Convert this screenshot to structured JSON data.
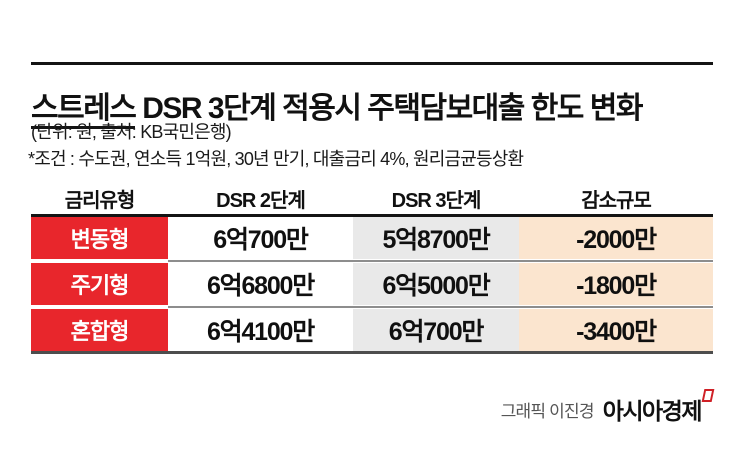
{
  "chart_data": {
    "type": "table",
    "title": "스트레스 DSR 3단계 적용시 주택담보대출 한도 변화",
    "unit_source": "(단위: 원, 출처: KB국민은행)",
    "condition": "*조건 : 수도권, 연소득 1억원, 30년 만기, 대출금리 4%, 원리금균등상환",
    "columns": [
      "금리유형",
      "DSR 2단계",
      "DSR 3단계",
      "감소규모"
    ],
    "rows": [
      [
        "변동형",
        "6억700만",
        "5억8700만",
        "-2000만"
      ],
      [
        "주기형",
        "6억6800만",
        "6억5000만",
        "-1800만"
      ],
      [
        "혼합형",
        "6억4100만",
        "6억700만",
        "-3400만"
      ]
    ]
  },
  "header": {
    "title_emphasis": "스트레스",
    "title_rest": " DSR 3단계 적용시 주택담보대출 한도 변화",
    "subtitle": "(단위: 원, 출처: KB국민은행)",
    "condition": "*조건 : 수도권, 연소득 1억원, 30년 만기, 대출금리 4%, 원리금균등상환"
  },
  "footer": {
    "credit": "그래픽 이진경",
    "brand": "아시아경제"
  },
  "colors": {
    "accent_red": "#e8262c",
    "col_gray": "#e9e9e9",
    "col_peach": "#fbe5cf",
    "rule_black": "#141414",
    "rule_gray": "#4d4d4d",
    "credit_gray": "#555555",
    "brand_mark_red": "#cf2026"
  }
}
